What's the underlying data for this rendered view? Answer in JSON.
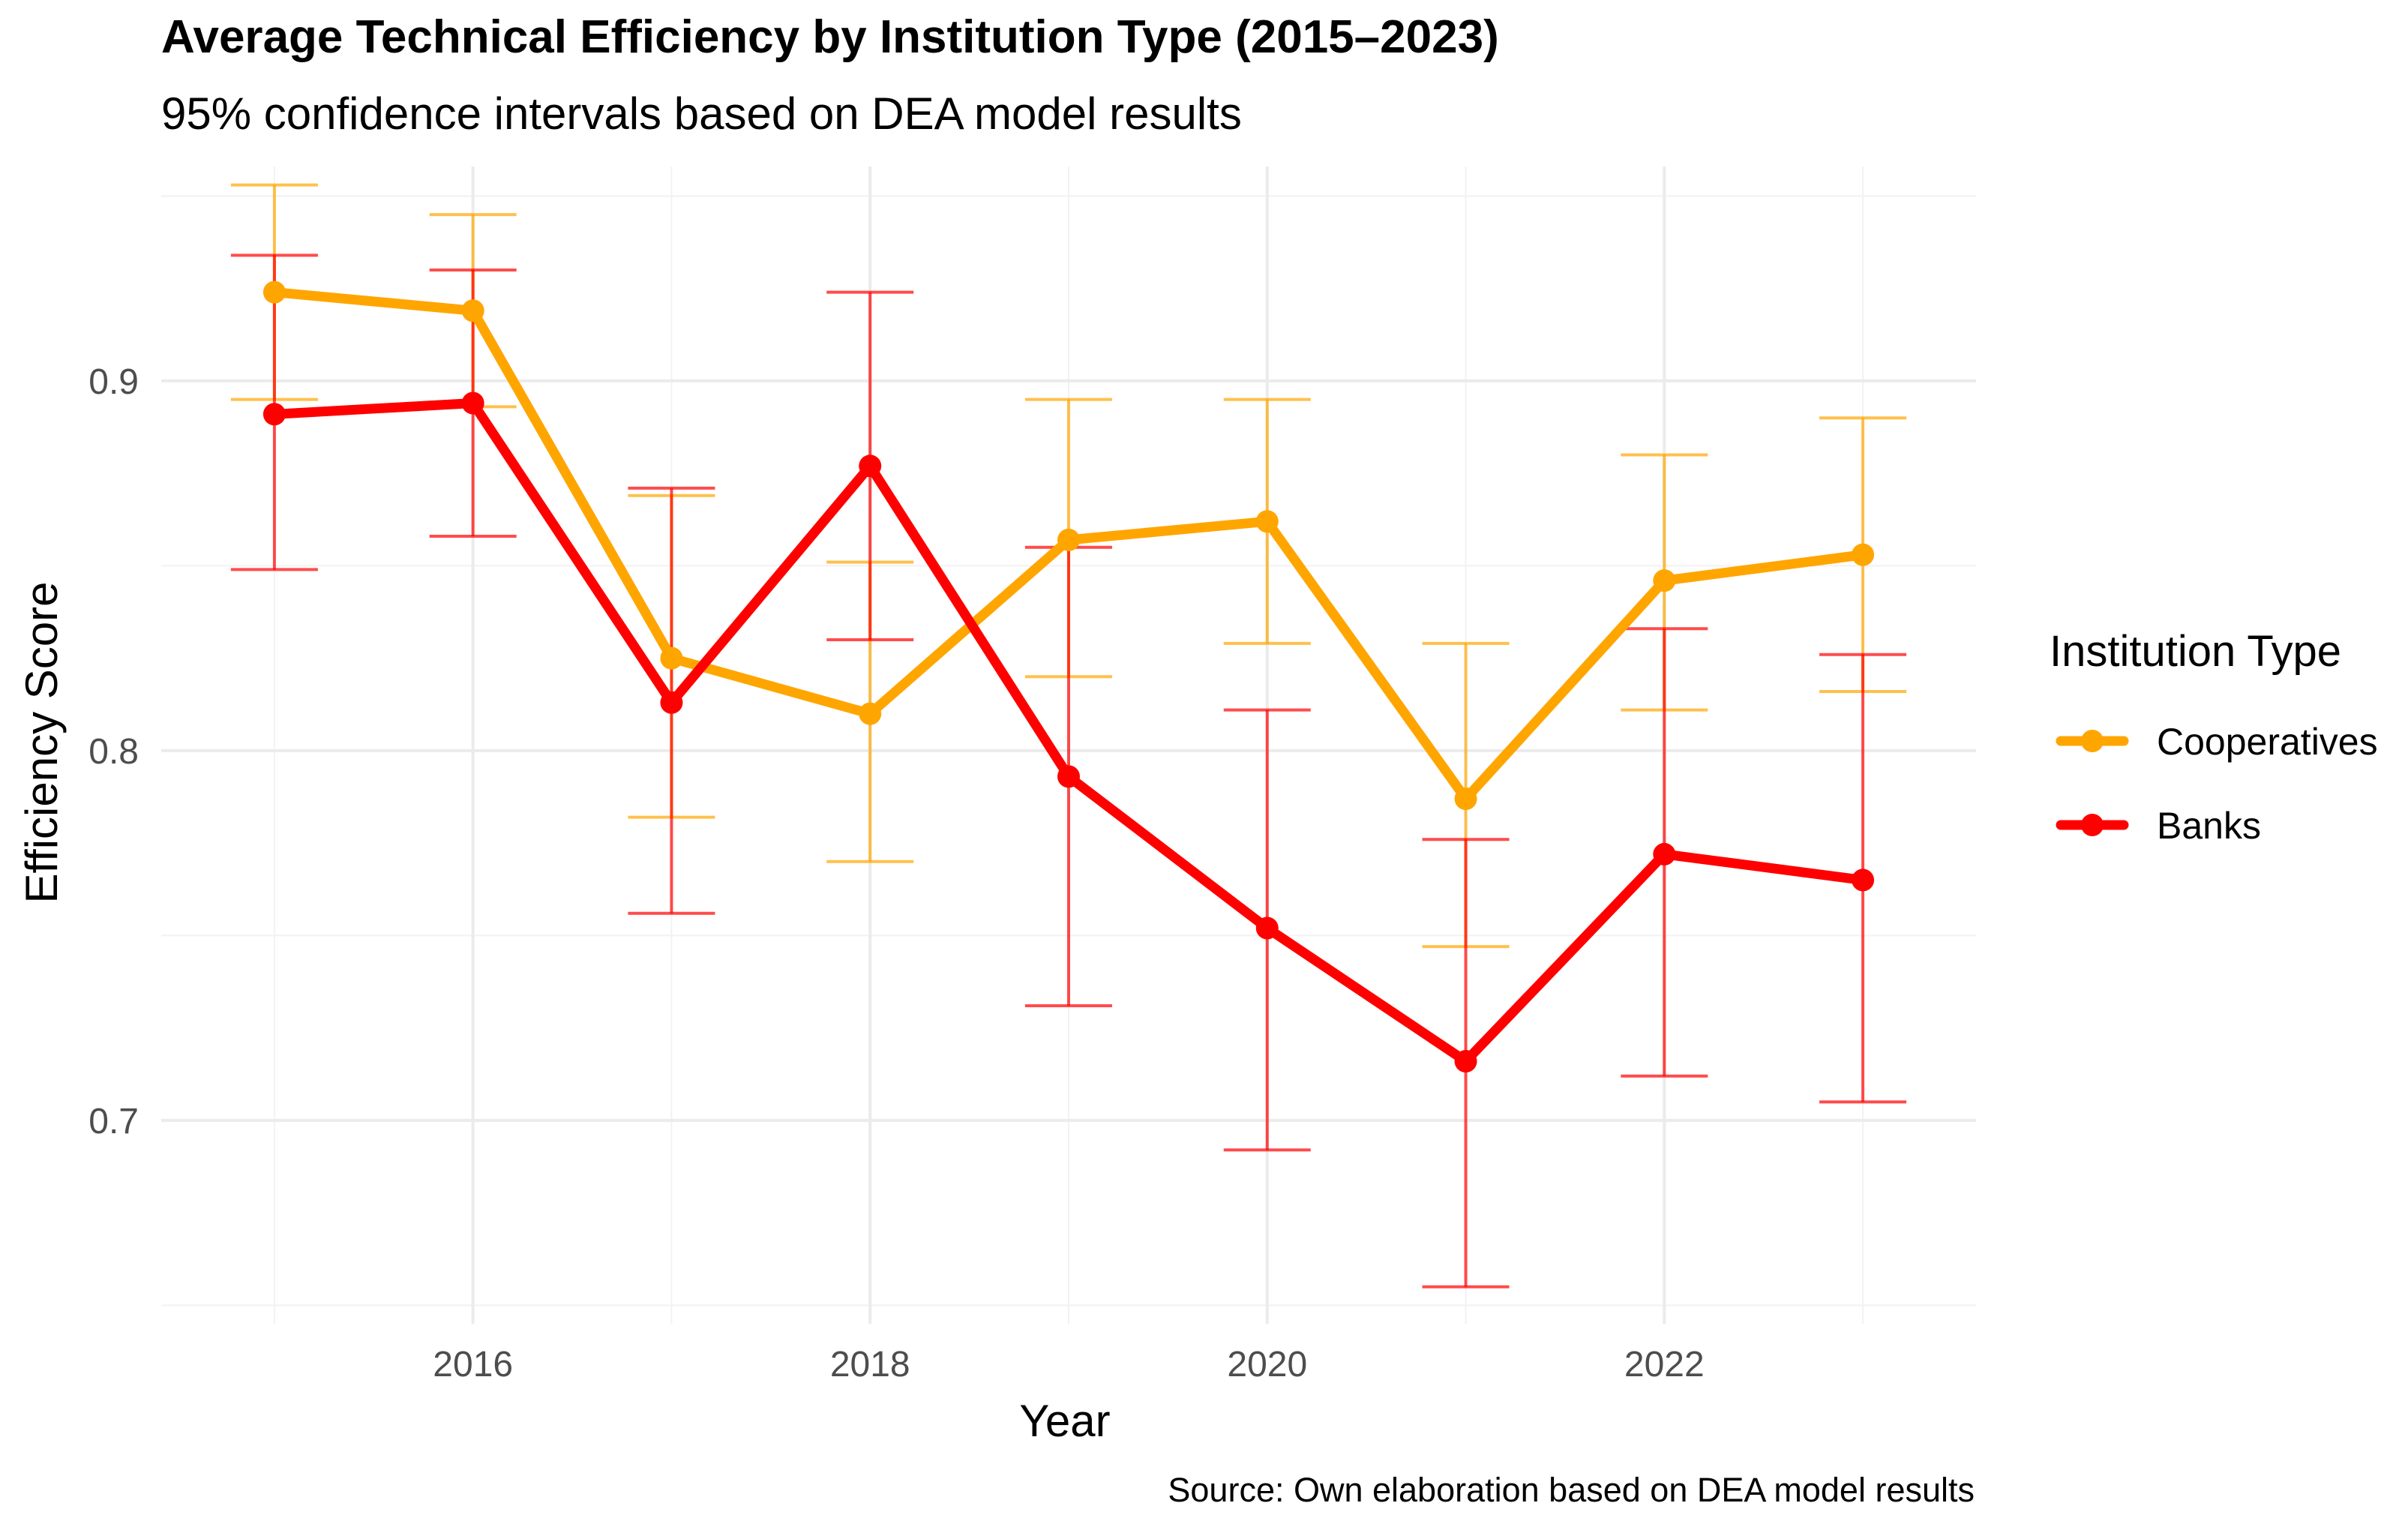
{
  "chart_data": {
    "type": "line",
    "title": "Average Technical Efficiency by Institution Type (2015–2023)",
    "subtitle": "95% confidence intervals based on DEA model results",
    "xlabel": "Year",
    "ylabel": "Efficiency Score",
    "caption": "Source: Own elaboration based on DEA model results",
    "x": [
      2015,
      2016,
      2017,
      2018,
      2019,
      2020,
      2021,
      2022,
      2023
    ],
    "xlim": [
      2014.43,
      2023.57
    ],
    "ylim": [
      0.645,
      0.958
    ],
    "x_ticks": [
      2016,
      2018,
      2020,
      2022
    ],
    "x_tick_labels": [
      "2016",
      "2018",
      "2020",
      "2022"
    ],
    "y_ticks": [
      0.7,
      0.8,
      0.9
    ],
    "y_tick_labels": [
      "0.7",
      "0.8",
      "0.9"
    ],
    "grid": true,
    "legend": {
      "title": "Institution Type",
      "position": "right"
    },
    "series": [
      {
        "name": "Cooperatives",
        "color": "#FFA500",
        "values": [
          0.924,
          0.919,
          0.825,
          0.81,
          0.857,
          0.862,
          0.787,
          0.846,
          0.853
        ],
        "ci_low": [
          0.895,
          0.893,
          0.782,
          0.77,
          0.82,
          0.829,
          0.747,
          0.811,
          0.816
        ],
        "ci_high": [
          0.953,
          0.945,
          0.869,
          0.851,
          0.895,
          0.895,
          0.829,
          0.88,
          0.89
        ]
      },
      {
        "name": "Banks",
        "color": "#FF0000",
        "values": [
          0.891,
          0.894,
          0.813,
          0.877,
          0.793,
          0.752,
          0.716,
          0.772,
          0.765
        ],
        "ci_low": [
          0.849,
          0.858,
          0.756,
          0.83,
          0.731,
          0.692,
          0.655,
          0.712,
          0.705
        ],
        "ci_high": [
          0.934,
          0.93,
          0.871,
          0.924,
          0.855,
          0.811,
          0.776,
          0.833,
          0.826
        ]
      }
    ]
  }
}
